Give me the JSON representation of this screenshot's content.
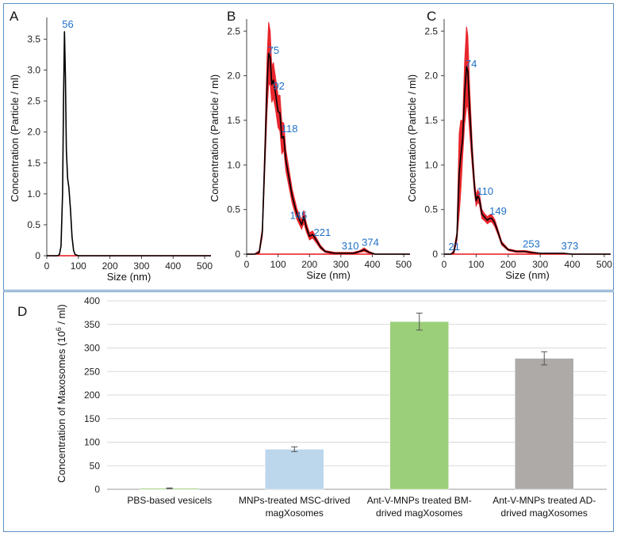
{
  "chart_data": [
    {
      "panel": "A",
      "type": "line",
      "xlabel": "Size (nm)",
      "ylabel": "Concentration (Particle / ml)",
      "xlim": [
        0,
        520
      ],
      "ylim": [
        0,
        3.8
      ],
      "xticks": [
        0,
        100,
        200,
        300,
        400,
        500
      ],
      "yticks": [
        0,
        0.5,
        1.0,
        1.5,
        2.0,
        2.5,
        3.0,
        3.5
      ],
      "ytick_labels": [
        "0",
        "0.5",
        "1.0",
        "1.5",
        "2.0",
        "2.5",
        "3.0",
        "3.5"
      ],
      "series": [
        {
          "name": "mean",
          "color": "#000000",
          "x": [
            0,
            20,
            35,
            40,
            45,
            50,
            53,
            56,
            59,
            62,
            66,
            70,
            75,
            80,
            85,
            90,
            100,
            150,
            300,
            520
          ],
          "y": [
            0,
            0,
            0,
            0.02,
            0.15,
            1.0,
            2.5,
            3.62,
            2.9,
            1.7,
            1.25,
            1.1,
            0.75,
            0.3,
            0.08,
            0.02,
            0,
            0,
            0,
            0
          ]
        }
      ],
      "annotations": [
        {
          "x": 56,
          "y": 3.62,
          "text": "56"
        }
      ]
    },
    {
      "panel": "B",
      "type": "line",
      "xlabel": "Size (nm)",
      "ylabel": "Concentration (Particle / ml)",
      "xlim": [
        0,
        520
      ],
      "ylim": [
        0,
        2.6
      ],
      "xticks": [
        0,
        100,
        200,
        300,
        400,
        500
      ],
      "yticks": [
        0,
        0.5,
        1.0,
        1.5,
        2.0,
        2.5
      ],
      "ytick_labels": [
        "0",
        "0.5",
        "1.0",
        "1.5",
        "2.0",
        "2.5"
      ],
      "series": [
        {
          "name": "mean",
          "color": "#000000",
          "band_color": "#e8141c",
          "x": [
            0,
            25,
            40,
            50,
            58,
            65,
            70,
            75,
            80,
            85,
            92,
            100,
            106,
            112,
            118,
            125,
            135,
            145,
            160,
            175,
            182,
            190,
            200,
            210,
            221,
            235,
            250,
            280,
            310,
            340,
            360,
            374,
            390,
            410,
            450,
            520
          ],
          "y": [
            0,
            0,
            0.02,
            0.25,
            1.1,
            1.9,
            2.25,
            2.2,
            1.9,
            1.95,
            1.8,
            1.6,
            1.58,
            1.3,
            1.32,
            1.05,
            0.85,
            0.65,
            0.45,
            0.33,
            0.42,
            0.3,
            0.2,
            0.22,
            0.16,
            0.08,
            0.03,
            0.01,
            0.01,
            0.01,
            0.03,
            0.05,
            0.02,
            0.0,
            0.0,
            0.0
          ],
          "band": [
            0,
            0,
            0.02,
            0.05,
            0.15,
            0.3,
            0.35,
            0.3,
            0.2,
            0.2,
            0.18,
            0.18,
            0.2,
            0.18,
            0.15,
            0.12,
            0.1,
            0.08,
            0.06,
            0.05,
            0.07,
            0.05,
            0.04,
            0.04,
            0.03,
            0.02,
            0.01,
            0.01,
            0.01,
            0.01,
            0.01,
            0.02,
            0.01,
            0,
            0,
            0
          ]
        }
      ],
      "annotations": [
        {
          "x": 75,
          "y": 2.2,
          "text": "75"
        },
        {
          "x": 92,
          "y": 1.8,
          "text": "92"
        },
        {
          "x": 118,
          "y": 1.32,
          "text": "118"
        },
        {
          "x": 145,
          "y": 0.35,
          "text": "145"
        },
        {
          "x": 221,
          "y": 0.16,
          "text": "221"
        },
        {
          "x": 310,
          "y": 0.01,
          "text": "310"
        },
        {
          "x": 374,
          "y": 0.05,
          "text": "374"
        }
      ]
    },
    {
      "panel": "C",
      "type": "line",
      "xlabel": "Size (nm)",
      "ylabel": "Concentration (Particle / ml)",
      "xlim": [
        0,
        520
      ],
      "ylim": [
        0,
        2.6
      ],
      "xticks": [
        0,
        100,
        200,
        300,
        400,
        500
      ],
      "yticks": [
        0,
        0.5,
        1.0,
        1.5,
        2.0,
        2.5
      ],
      "ytick_labels": [
        "0",
        "0.5",
        "1.0",
        "1.5",
        "2.0",
        "2.5"
      ],
      "series": [
        {
          "name": "mean",
          "color": "#000000",
          "band_color": "#e8141c",
          "x": [
            0,
            21,
            30,
            40,
            47,
            52,
            58,
            64,
            70,
            74,
            80,
            88,
            95,
            100,
            105,
            110,
            118,
            125,
            135,
            142,
            149,
            158,
            168,
            180,
            200,
            225,
            253,
            270,
            300,
            340,
            373,
            400,
            450,
            520
          ],
          "y": [
            0,
            0.0,
            0.02,
            0.2,
            0.9,
            1.1,
            1.3,
            1.8,
            2.1,
            2.05,
            1.6,
            1.1,
            0.75,
            0.6,
            0.65,
            0.62,
            0.45,
            0.42,
            0.38,
            0.4,
            0.4,
            0.35,
            0.25,
            0.12,
            0.05,
            0.03,
            0.03,
            0.02,
            0.01,
            0.01,
            0.01,
            0,
            0,
            0
          ],
          "band": [
            0,
            0,
            0.02,
            0.05,
            0.45,
            0.4,
            0.2,
            0.35,
            0.45,
            0.4,
            0.25,
            0.12,
            0.08,
            0.06,
            0.07,
            0.06,
            0.05,
            0.04,
            0.04,
            0.04,
            0.04,
            0.04,
            0.03,
            0.02,
            0.01,
            0.01,
            0.01,
            0.01,
            0,
            0,
            0,
            0,
            0,
            0
          ]
        }
      ],
      "annotations": [
        {
          "x": 21,
          "y": 0.0,
          "text": "21"
        },
        {
          "x": 74,
          "y": 2.05,
          "text": "74"
        },
        {
          "x": 110,
          "y": 0.62,
          "text": "110"
        },
        {
          "x": 149,
          "y": 0.4,
          "text": "149"
        },
        {
          "x": 253,
          "y": 0.03,
          "text": "253"
        },
        {
          "x": 373,
          "y": 0.01,
          "text": "373"
        }
      ]
    },
    {
      "panel": "D",
      "type": "bar",
      "ylabel_main": "Concentration of Maxosomes (10",
      "ylabel_sup": "6",
      "ylabel_tail": " / ml)",
      "ylim": [
        0,
        400
      ],
      "yticks": [
        0,
        50,
        100,
        150,
        200,
        250,
        300,
        350,
        400
      ],
      "categories": [
        [
          "PBS-based vesicels"
        ],
        [
          "MNPs-treated MSC-drived",
          "magXosomes"
        ],
        [
          "Ant-V-MNPs treated BM-",
          "drived magXosomes"
        ],
        [
          "Ant-V-MNPs treated AD-",
          "drived magXosomes"
        ]
      ],
      "values": [
        2,
        85,
        356,
        278
      ],
      "errors": [
        1,
        5,
        18,
        14
      ],
      "colors": [
        "#9ccf7a",
        "#bcd6ec",
        "#9ccf7a",
        "#aeaaa7"
      ]
    }
  ]
}
